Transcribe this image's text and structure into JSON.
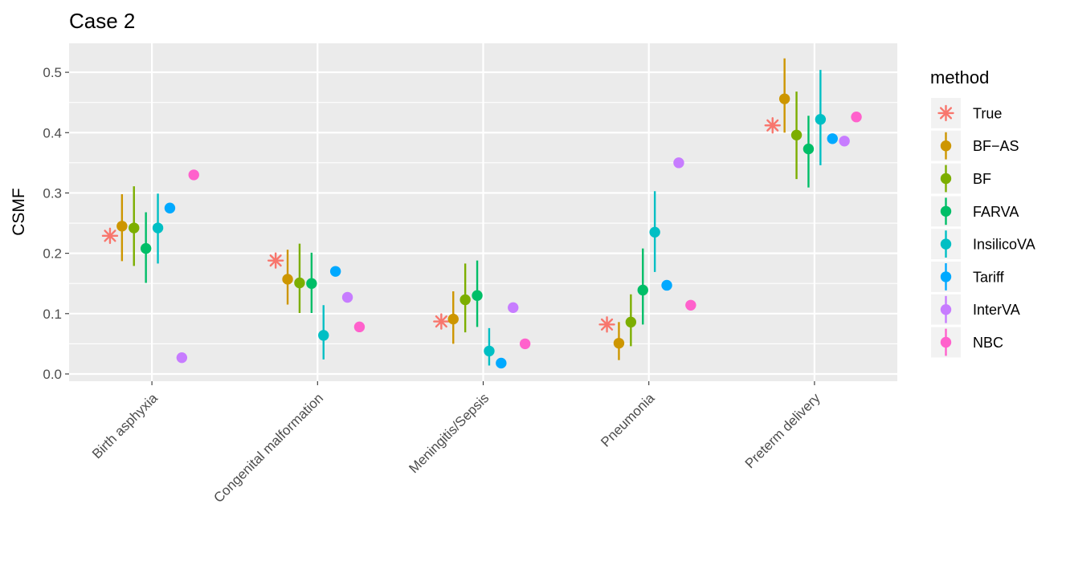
{
  "chart_data": {
    "type": "scatter",
    "title": "Case 2",
    "xlabel": "",
    "ylabel": "CSMF",
    "ylim": [
      -0.012,
      0.548
    ],
    "yticks": [
      0.0,
      0.1,
      0.2,
      0.3,
      0.4,
      0.5
    ],
    "ytick_labels": [
      "0.0",
      "0.1",
      "0.2",
      "0.3",
      "0.4",
      "0.5"
    ],
    "categories": [
      "Birth asphyxia",
      "Congenital malformation",
      "Meningitis/Sepsis",
      "Pneumonia",
      "Preterm delivery"
    ],
    "legend_title": "method",
    "legend_position": "right",
    "series": [
      {
        "name": "True",
        "color": "#F8766D",
        "marker": "asterisk",
        "values": [
          0.229,
          0.188,
          0.087,
          0.082,
          0.412
        ],
        "lower": [
          null,
          null,
          null,
          null,
          null
        ],
        "upper": [
          null,
          null,
          null,
          null,
          null
        ]
      },
      {
        "name": "BF−AS",
        "color": "#CD9600",
        "marker": "circle",
        "values": [
          0.245,
          0.157,
          0.091,
          0.051,
          0.456
        ],
        "lower": [
          0.187,
          0.115,
          0.05,
          0.023,
          0.4
        ],
        "upper": [
          0.298,
          0.206,
          0.137,
          0.086,
          0.523
        ]
      },
      {
        "name": "BF",
        "color": "#7CAE00",
        "marker": "circle",
        "values": [
          0.242,
          0.151,
          0.123,
          0.086,
          0.396
        ],
        "lower": [
          0.179,
          0.101,
          0.069,
          0.046,
          0.323
        ],
        "upper": [
          0.311,
          0.216,
          0.183,
          0.132,
          0.468
        ]
      },
      {
        "name": "FARVA",
        "color": "#00BE67",
        "marker": "circle",
        "values": [
          0.208,
          0.15,
          0.13,
          0.139,
          0.373
        ],
        "lower": [
          0.151,
          0.101,
          0.078,
          0.082,
          0.309
        ],
        "upper": [
          0.268,
          0.201,
          0.188,
          0.208,
          0.428
        ]
      },
      {
        "name": "InsilicoVA",
        "color": "#00BFC4",
        "marker": "circle",
        "values": [
          0.242,
          0.064,
          0.038,
          0.235,
          0.422
        ],
        "lower": [
          0.183,
          0.024,
          0.014,
          0.169,
          0.346
        ],
        "upper": [
          0.299,
          0.114,
          0.076,
          0.303,
          0.504
        ]
      },
      {
        "name": "Tariff",
        "color": "#00A9FF",
        "marker": "circle",
        "values": [
          0.275,
          0.17,
          0.018,
          0.147,
          0.39
        ],
        "lower": [
          null,
          null,
          null,
          null,
          null
        ],
        "upper": [
          null,
          null,
          null,
          null,
          null
        ]
      },
      {
        "name": "InterVA",
        "color": "#C77CFF",
        "marker": "circle",
        "values": [
          0.027,
          0.127,
          0.11,
          0.35,
          0.386
        ],
        "lower": [
          null,
          null,
          null,
          null,
          null
        ],
        "upper": [
          null,
          null,
          null,
          null,
          null
        ]
      },
      {
        "name": "NBC",
        "color": "#FF61CC",
        "marker": "circle",
        "values": [
          0.33,
          0.078,
          0.05,
          0.114,
          0.426
        ],
        "lower": [
          null,
          null,
          null,
          null,
          null
        ],
        "upper": [
          null,
          null,
          null,
          null,
          null
        ]
      }
    ]
  }
}
